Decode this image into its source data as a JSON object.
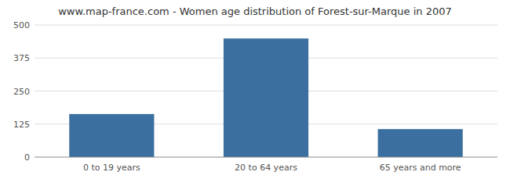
{
  "chart_data": {
    "type": "bar",
    "title": "www.map-france.com - Women age distribution of Forest-sur-Marque in 2007",
    "categories": [
      "0 to 19 years",
      "20 to 64 years",
      "65 years and more"
    ],
    "values": [
      163,
      449,
      106
    ],
    "color": "#3a6f9f",
    "ylim": [
      0,
      500
    ],
    "yticks": [
      0,
      125,
      250,
      375,
      500
    ],
    "grid": true
  }
}
